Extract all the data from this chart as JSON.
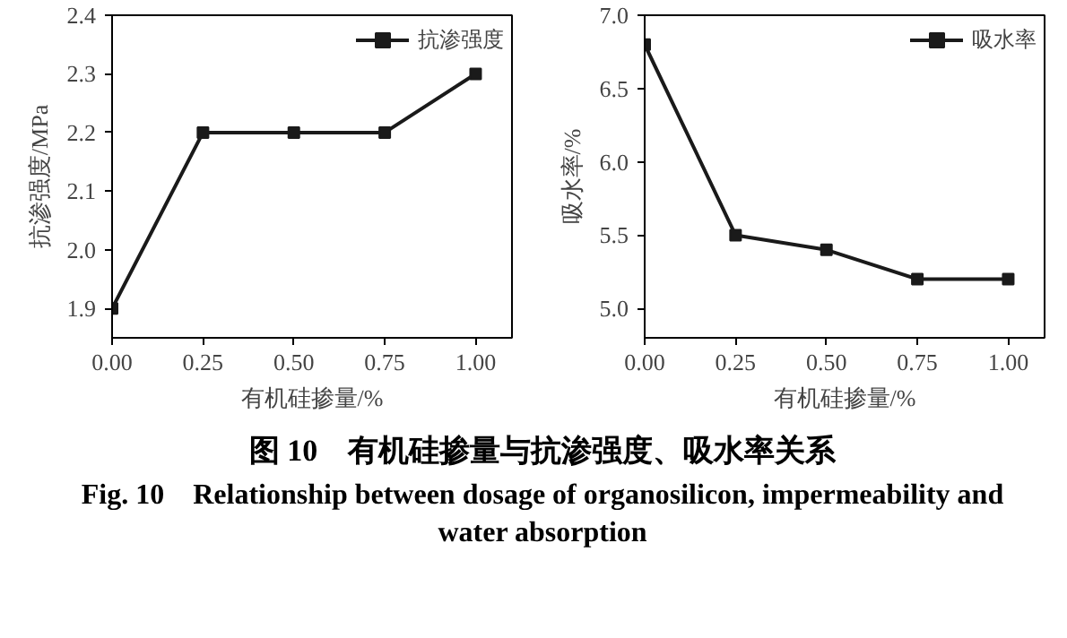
{
  "chart_data": [
    {
      "type": "line",
      "xlabel": "有机硅掺量/%",
      "ylabel": "抗渗强度/MPa",
      "x": [
        0,
        0.25,
        0.5,
        0.75,
        1.0
      ],
      "series": [
        {
          "name": "抗渗强度",
          "color": "#1a1a1a",
          "values": [
            1.9,
            2.2,
            2.2,
            2.2,
            2.3
          ]
        }
      ],
      "xlim": [
        0,
        1.1
      ],
      "xticks": [
        {
          "value": 0,
          "label": "0.00"
        },
        {
          "value": 0.25,
          "label": "0.25"
        },
        {
          "value": 0.5,
          "label": "0.50"
        },
        {
          "value": 0.75,
          "label": "0.75"
        },
        {
          "value": 1,
          "label": "1.00"
        }
      ],
      "ylim": [
        1.85,
        2.4
      ],
      "yticks": [
        1.9,
        {
          "value": 2,
          "label": "2.0"
        },
        2.1,
        2.2,
        2.3,
        2.4
      ],
      "grid": false,
      "legend": "top right",
      "marker": "square",
      "line_style": "solid"
    },
    {
      "type": "line",
      "xlabel": "有机硅掺量/%",
      "ylabel": "吸水率/%",
      "x": [
        0,
        0.25,
        0.5,
        0.75,
        1.0
      ],
      "series": [
        {
          "name": "吸水率",
          "color": "#1a1a1a",
          "values": [
            6.8,
            5.5,
            5.4,
            5.2,
            5.2
          ]
        }
      ],
      "xlim": [
        0,
        1.1
      ],
      "xticks": [
        {
          "value": 0,
          "label": "0.00"
        },
        {
          "value": 0.25,
          "label": "0.25"
        },
        {
          "value": 0.5,
          "label": "0.50"
        },
        {
          "value": 0.75,
          "label": "0.75"
        },
        {
          "value": 1,
          "label": "1.00"
        }
      ],
      "ylim": [
        4.8,
        7.0
      ],
      "yticks": [
        {
          "value": 5,
          "label": "5.0"
        },
        5.5,
        {
          "value": 6,
          "label": "6.0"
        },
        6.5,
        {
          "value": 7,
          "label": "7.0"
        }
      ],
      "grid": false,
      "legend": "top right",
      "marker": "square",
      "line_style": "solid",
      "annotations": [
        "图 10　有机硅掺量与抗渗强度、吸水率关系",
        "Fig. 10　Relationship between dosage of organosilicon, impermeability and water absorption"
      ]
    }
  ]
}
